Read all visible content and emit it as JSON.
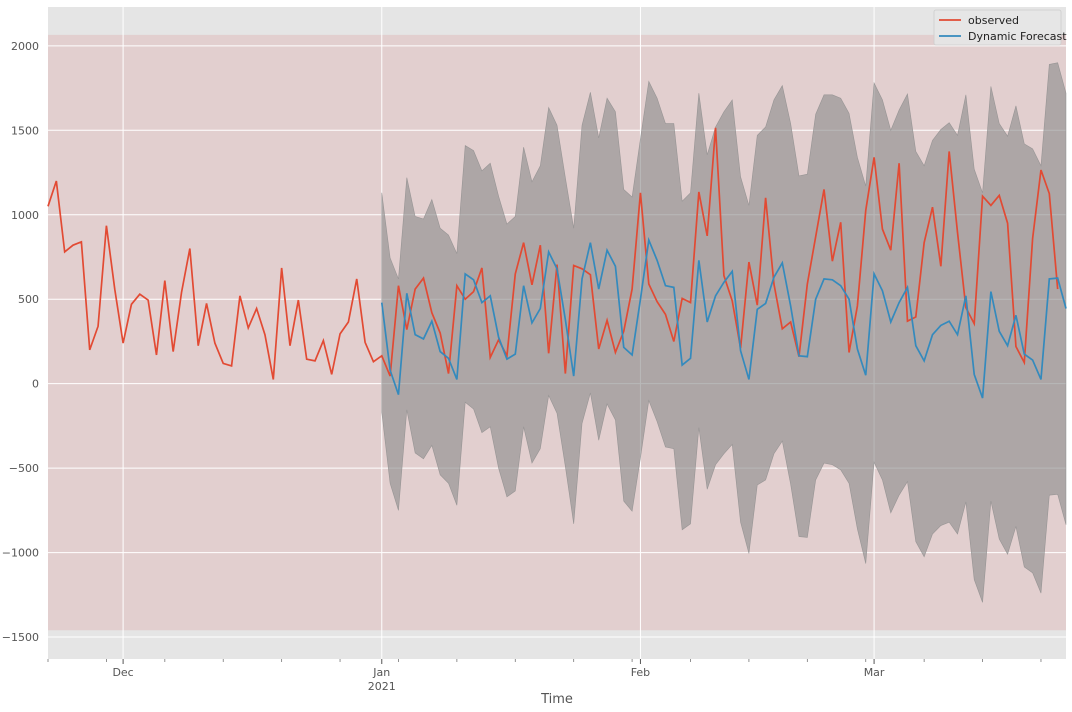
{
  "chart_data": {
    "type": "line",
    "title": "",
    "xlabel": "Time",
    "ylabel": "",
    "x_start": "2020-11-22",
    "x_end": "2021-03-24",
    "xlim": [
      "2020-11-22",
      "2021-03-24"
    ],
    "ylim": [
      -1630,
      2230
    ],
    "yticks": [
      -1500,
      -1000,
      -500,
      0,
      500,
      1000,
      1500,
      2000
    ],
    "xticks": [
      {
        "date": "2020-12-01",
        "label": "Dec",
        "sublabel": ""
      },
      {
        "date": "2021-01-01",
        "label": "Jan",
        "sublabel": "2021"
      },
      {
        "date": "2021-02-01",
        "label": "Feb",
        "sublabel": ""
      },
      {
        "date": "2021-03-01",
        "label": "Mar",
        "sublabel": ""
      }
    ],
    "grid": true,
    "legend_position": "top-right",
    "shaded_region": {
      "y_from": -1460,
      "y_to": 2065
    },
    "series": [
      {
        "name": "observed",
        "color": "#E24A33",
        "start": "2020-11-22",
        "values": [
          1050,
          1200,
          780,
          820,
          840,
          200,
          340,
          935,
          560,
          240,
          470,
          530,
          495,
          170,
          610,
          190,
          540,
          800,
          225,
          475,
          240,
          120,
          105,
          520,
          330,
          445,
          290,
          25,
          685,
          225,
          495,
          145,
          135,
          255,
          55,
          295,
          365,
          620,
          245,
          130,
          165,
          45,
          580,
          320,
          560,
          625,
          420,
          300,
          60,
          580,
          500,
          545,
          685,
          155,
          260,
          165,
          650,
          835,
          585,
          820,
          180,
          705,
          60,
          700,
          680,
          645,
          205,
          375,
          185,
          310,
          560,
          1130,
          590,
          485,
          410,
          250,
          505,
          480,
          1135,
          875,
          1515,
          640,
          490,
          210,
          720,
          465,
          1100,
          590,
          325,
          365,
          160,
          590,
          870,
          1150,
          725,
          955,
          185,
          460,
          1025,
          1340,
          915,
          790,
          1305,
          370,
          395,
          835,
          1045,
          695,
          1375,
          895,
          450,
          355,
          1110,
          1055,
          1115,
          950,
          220,
          125,
          860,
          1265,
          1125,
          560
        ]
      },
      {
        "name": "Dynamic Forecast",
        "color": "#348ABD",
        "start": "2021-01-01",
        "values": [
          480,
          80,
          -65,
          535,
          290,
          265,
          370,
          190,
          150,
          25,
          650,
          615,
          480,
          520,
          275,
          145,
          175,
          580,
          360,
          445,
          780,
          680,
          380,
          45,
          620,
          835,
          560,
          790,
          695,
          215,
          170,
          500,
          850,
          730,
          580,
          570,
          110,
          150,
          730,
          365,
          520,
          600,
          665,
          195,
          25,
          440,
          475,
          630,
          715,
          460,
          165,
          160,
          500,
          620,
          615,
          580,
          500,
          205,
          50,
          650,
          550,
          365,
          480,
          570,
          225,
          135,
          290,
          345,
          370,
          290,
          520,
          55,
          -85,
          545,
          310,
          225,
          405,
          175,
          140,
          25,
          620,
          625,
          445
        ]
      }
    ],
    "confidence_band": {
      "start": "2021-01-01",
      "color": "#8c8c8c",
      "upper": [
        1130,
        745,
        620,
        1220,
        990,
        975,
        1090,
        920,
        880,
        770,
        1410,
        1380,
        1260,
        1305,
        1110,
        945,
        990,
        1400,
        1195,
        1290,
        1635,
        1530,
        1220,
        920,
        1530,
        1725,
        1455,
        1690,
        1610,
        1150,
        1105,
        1450,
        1790,
        1690,
        1540,
        1540,
        1080,
        1130,
        1720,
        1355,
        1520,
        1610,
        1680,
        1225,
        1055,
        1470,
        1520,
        1680,
        1765,
        1540,
        1230,
        1240,
        1595,
        1710,
        1710,
        1690,
        1600,
        1340,
        1170,
        1780,
        1680,
        1500,
        1620,
        1715,
        1375,
        1290,
        1440,
        1505,
        1545,
        1470,
        1710,
        1270,
        1130,
        1760,
        1540,
        1465,
        1645,
        1420,
        1390,
        1290,
        1890,
        1900,
        1720
      ],
      "lower": [
        -170,
        -590,
        -750,
        -155,
        -410,
        -445,
        -365,
        -540,
        -590,
        -720,
        -110,
        -150,
        -290,
        -255,
        -500,
        -670,
        -635,
        -255,
        -470,
        -385,
        -70,
        -175,
        -490,
        -830,
        -235,
        -55,
        -335,
        -120,
        -215,
        -695,
        -755,
        -440,
        -100,
        -225,
        -375,
        -385,
        -865,
        -830,
        -260,
        -625,
        -480,
        -415,
        -360,
        -820,
        -1005,
        -600,
        -570,
        -415,
        -340,
        -595,
        -905,
        -910,
        -570,
        -470,
        -480,
        -510,
        -590,
        -860,
        -1065,
        -465,
        -570,
        -765,
        -660,
        -580,
        -935,
        -1025,
        -890,
        -840,
        -820,
        -890,
        -700,
        -1160,
        -1295,
        -695,
        -920,
        -1010,
        -845,
        -1085,
        -1120,
        -1240,
        -660,
        -655,
        -835
      ]
    }
  }
}
